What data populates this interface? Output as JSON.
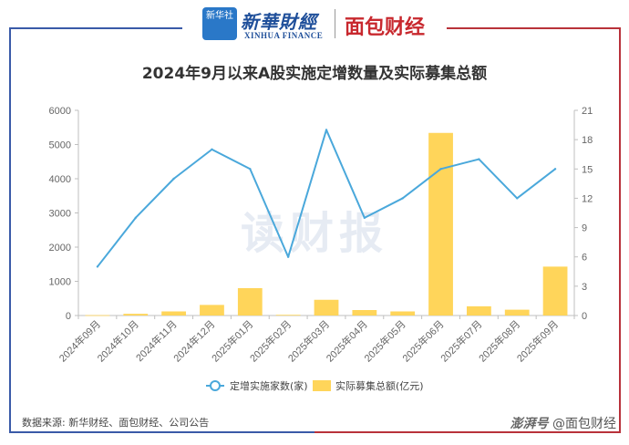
{
  "header": {
    "logo_box_text": "新华社",
    "logo_xinhua": "新華財經",
    "logo_xinhua_en": "XINHUA FINANCE",
    "logo_mianbao": "面包财经"
  },
  "watermark": "读财报",
  "source": "数据来源: 新华财经、面包财经、公司公告",
  "footer": {
    "platform": "澎湃号",
    "brand": "@面包财经"
  },
  "colors": {
    "line": "#4aa8db",
    "bar": "#ffd55a",
    "frame_left": "#3a5aa8",
    "frame_right": "#b8323a"
  },
  "chart_data": {
    "type": "bar+line",
    "title": "2024年9月以来A股实施定增数量及实际募集总额",
    "categories": [
      "2024年09月",
      "2024年10月",
      "2024年11月",
      "2024年12月",
      "2025年01月",
      "2025年02月",
      "2025年03月",
      "2025年04月",
      "2025年05月",
      "2025年06月",
      "2025年07月",
      "2025年08月",
      "2025年09月"
    ],
    "left_axis": {
      "min": 0,
      "max": 6000,
      "ticks": [
        0,
        1000,
        2000,
        3000,
        4000,
        5000,
        6000
      ]
    },
    "right_axis": {
      "min": 0,
      "max": 21,
      "ticks": [
        0,
        3,
        6,
        9,
        12,
        15,
        18,
        21
      ]
    },
    "series": [
      {
        "name": "定增实施家数(家)",
        "type": "line",
        "axis": "right",
        "values": [
          5,
          10,
          14,
          17,
          15,
          6,
          19,
          10,
          12,
          15,
          16,
          12,
          15
        ]
      },
      {
        "name": "实际募集总额(亿元)",
        "type": "bar",
        "axis": "left",
        "values": [
          10,
          50,
          120,
          310,
          800,
          20,
          460,
          160,
          120,
          5340,
          270,
          170,
          1430
        ]
      }
    ],
    "legend_position": "bottom",
    "grid": false
  }
}
